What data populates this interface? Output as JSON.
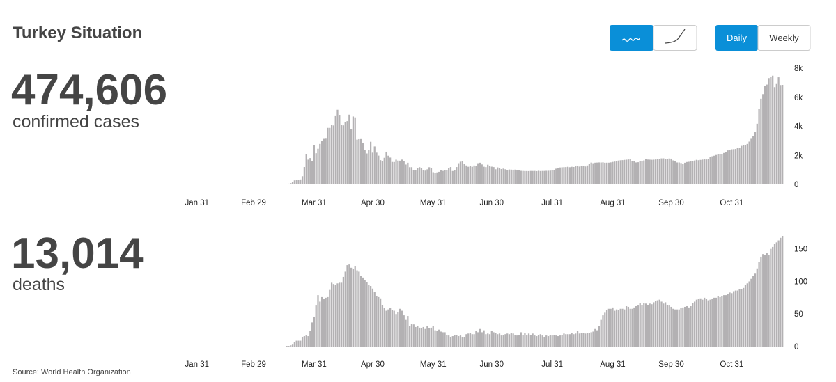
{
  "title": "Turkey Situation",
  "controls": {
    "modes": [
      "Daily",
      "Weekly"
    ]
  },
  "source": "Source: World Health Organization",
  "chart_data": [
    {
      "type": "bar",
      "total": "474,606",
      "total_label": "confirmed cases",
      "color": "#b3b1b3",
      "xlim": [
        "Jan 25",
        "Nov 27"
      ],
      "xticks": [
        "Jan 31",
        "Feb 29",
        "Mar 31",
        "Apr 30",
        "May 31",
        "Jun 30",
        "Jul 31",
        "Aug 31",
        "Sep 30",
        "Oct 31"
      ],
      "ylim": [
        0,
        8000
      ],
      "yticks": [
        0,
        {
          "value": 2000,
          "label": "2k"
        },
        {
          "value": 4000,
          "label": "4k"
        },
        {
          "value": 6000,
          "label": "6k"
        },
        {
          "value": 8000,
          "label": "8k"
        }
      ],
      "x": [
        "Mar 11",
        "Mar 12",
        "Mar 13",
        "Mar 14",
        "Mar 15",
        "Mar 16",
        "Mar 17",
        "Mar 18",
        "Mar 19",
        "Mar 20",
        "Mar 21",
        "Mar 22",
        "Mar 23",
        "Mar 24",
        "Mar 25",
        "Mar 26",
        "Mar 27",
        "Mar 28",
        "Mar 29",
        "Mar 30",
        "Mar 31",
        "Apr 1",
        "Apr 2",
        "Apr 3",
        "Apr 4",
        "Apr 5",
        "Apr 6",
        "Apr 7",
        "Apr 8",
        "Apr 9",
        "Apr 10",
        "Apr 11",
        "Apr 12",
        "Apr 13",
        "Apr 14",
        "Apr 15",
        "Apr 16",
        "Apr 17",
        "Apr 18",
        "Apr 19",
        "Apr 20",
        "Apr 21",
        "Apr 22",
        "Apr 23",
        "Apr 24",
        "Apr 25",
        "Apr 26",
        "Apr 27",
        "Apr 28",
        "Apr 29",
        "Apr 30",
        "May 1",
        "May 2",
        "May 3",
        "May 4",
        "May 5",
        "May 6",
        "May 7",
        "May 8",
        "May 9",
        "May 10",
        "May 11",
        "May 12",
        "May 13",
        "May 14",
        "May 15",
        "May 16",
        "May 17",
        "May 18",
        "May 19",
        "May 20",
        "May 21",
        "May 22",
        "May 23",
        "May 24",
        "May 25",
        "May 26",
        "May 27",
        "May 28",
        "May 29",
        "May 30",
        "May 31",
        "Jun 1",
        "Jun 2",
        "Jun 3",
        "Jun 4",
        "Jun 5",
        "Jun 6",
        "Jun 7",
        "Jun 8",
        "Jun 9",
        "Jun 10",
        "Jun 11",
        "Jun 12",
        "Jun 13",
        "Jun 14",
        "Jun 15",
        "Jun 16",
        "Jun 17",
        "Jun 18",
        "Jun 19",
        "Jun 20",
        "Jun 21",
        "Jun 22",
        "Jun 23",
        "Jun 24",
        "Jun 25",
        "Jun 26",
        "Jun 27",
        "Jun 28",
        "Jun 29",
        "Jun 30",
        "Jul 1",
        "Jul 2",
        "Jul 3",
        "Jul 4",
        "Jul 5",
        "Jul 6",
        "Jul 7",
        "Jul 8",
        "Jul 9",
        "Jul 10",
        "Jul 11",
        "Jul 12",
        "Jul 13",
        "Jul 14",
        "Jul 15",
        "Jul 16",
        "Jul 17",
        "Jul 18",
        "Jul 19",
        "Jul 20",
        "Jul 21",
        "Jul 22",
        "Jul 23",
        "Jul 24",
        "Jul 25",
        "Jul 26",
        "Jul 27",
        "Jul 28",
        "Jul 29",
        "Jul 30",
        "Jul 31",
        "Aug 1",
        "Aug 2",
        "Aug 3",
        "Aug 4",
        "Aug 5",
        "Aug 6",
        "Aug 7",
        "Aug 8",
        "Aug 9",
        "Aug 10",
        "Aug 11",
        "Aug 12",
        "Aug 13",
        "Aug 14",
        "Aug 15",
        "Aug 16",
        "Aug 17",
        "Aug 18",
        "Aug 19",
        "Aug 20",
        "Aug 21",
        "Aug 22",
        "Aug 23",
        "Aug 24",
        "Aug 25",
        "Aug 26",
        "Aug 27",
        "Aug 28",
        "Aug 29",
        "Aug 30",
        "Aug 31",
        "Sep 1",
        "Sep 2",
        "Sep 3",
        "Sep 4",
        "Sep 5",
        "Sep 6",
        "Sep 7",
        "Sep 8",
        "Sep 9",
        "Sep 10",
        "Sep 11",
        "Sep 12",
        "Sep 13",
        "Sep 14",
        "Sep 15",
        "Sep 16",
        "Sep 17",
        "Sep 18",
        "Sep 19",
        "Sep 20",
        "Sep 21",
        "Sep 22",
        "Sep 23",
        "Sep 24",
        "Sep 25",
        "Sep 26",
        "Sep 27",
        "Sep 28",
        "Sep 29",
        "Sep 30",
        "Oct 1",
        "Oct 2",
        "Oct 3",
        "Oct 4",
        "Oct 5",
        "Oct 6",
        "Oct 7",
        "Oct 8",
        "Oct 9",
        "Oct 10",
        "Oct 11",
        "Oct 12",
        "Oct 13",
        "Oct 14",
        "Oct 15",
        "Oct 16",
        "Oct 17",
        "Oct 18",
        "Oct 19",
        "Oct 20",
        "Oct 21",
        "Oct 22",
        "Oct 23",
        "Oct 24",
        "Oct 25",
        "Oct 26",
        "Oct 27",
        "Oct 28",
        "Oct 29",
        "Oct 30",
        "Oct 31",
        "Nov 1",
        "Nov 2",
        "Nov 3",
        "Nov 4",
        "Nov 5",
        "Nov 6",
        "Nov 7",
        "Nov 8",
        "Nov 9",
        "Nov 10",
        "Nov 11",
        "Nov 12",
        "Nov 13",
        "Nov 14",
        "Nov 15",
        "Nov 16",
        "Nov 17",
        "Nov 18",
        "Nov 19",
        "Nov 20",
        "Nov 21",
        "Nov 22",
        "Nov 23",
        "Nov 24",
        "Nov 25",
        "Nov 26"
      ],
      "values": [
        0,
        1,
        1,
        3,
        1,
        11,
        29,
        51,
        93,
        168,
        277,
        289,
        293,
        343,
        561,
        1196,
        2069,
        1704,
        1815,
        1610,
        2704,
        2148,
        2456,
        2786,
        3013,
        3135,
        3148,
        3892,
        3892,
        4117,
        4056,
        4747,
        5138,
        4789,
        4093,
        4062,
        4281,
        4353,
        4801,
        3783,
        4674,
        4611,
        3083,
        3116,
        3122,
        2861,
        2357,
        2131,
        2392,
        2936,
        2188,
        2615,
        2188,
        1983,
        1670,
        1614,
        1832,
        2253,
        1977,
        1848,
        1546,
        1542,
        1704,
        1641,
        1635,
        1708,
        1610,
        1368,
        1492,
        1184,
        1186,
        972,
        961,
        1141,
        1186,
        1141,
        987,
        948,
        1034,
        1182,
        1141,
        839,
        786,
        827,
        867,
        989,
        930,
        988,
        987,
        1141,
        1195,
        922,
        987,
        1195,
        1459,
        1562,
        1592,
        1429,
        1304,
        1214,
        1248,
        1212,
        1301,
        1293,
        1458,
        1492,
        1374,
        1214,
        1191,
        1356,
        1293,
        1219,
        1192,
        1041,
        1172,
        1148,
        1053,
        1086,
        1041,
        1001,
        1024,
        1016,
        1008,
        1016,
        972,
        999,
        933,
        926,
        919,
        918,
        915,
        926,
        924,
        927,
        913,
        937,
        919,
        925,
        926,
        935,
        939,
        947,
        967,
        993,
        1083,
        1104,
        1166,
        1178,
        1186,
        1192,
        1211,
        1183,
        1212,
        1198,
        1243,
        1263,
        1226,
        1256,
        1263,
        1234,
        1303,
        1412,
        1502,
        1458,
        1494,
        1502,
        1512,
        1509,
        1517,
        1491,
        1494,
        1495,
        1517,
        1549,
        1572,
        1596,
        1643,
        1661,
        1671,
        1690,
        1703,
        1716,
        1727,
        1617,
        1597,
        1512,
        1527,
        1582,
        1612,
        1650,
        1742,
        1710,
        1704,
        1696,
        1703,
        1717,
        1739,
        1767,
        1792,
        1795,
        1751,
        1741,
        1785,
        1775,
        1653,
        1602,
        1510,
        1509,
        1471,
        1417,
        1491,
        1542,
        1559,
        1583,
        1614,
        1646,
        1692,
        1665,
        1688,
        1709,
        1722,
        1717,
        1757,
        1886,
        1936,
        1975,
        2026,
        2102,
        2089,
        2102,
        2165,
        2204,
        2343,
        2364,
        2418,
        2426,
        2440,
        2515,
        2532,
        2655,
        2685,
        2688,
        2785,
        2947,
        3140,
        3346,
        3593,
        4175,
        5215,
        5900,
        6214,
        6756,
        6871,
        7317,
        7381,
        7485,
        6694,
        6911,
        7374,
        6838,
        6850
      ]
    },
    {
      "type": "bar",
      "total": "13,014",
      "total_label": "deaths",
      "color": "#b3b1b3",
      "xlim": [
        "Jan 25",
        "Nov 27"
      ],
      "xticks": [
        "Jan 31",
        "Feb 29",
        "Mar 31",
        "Apr 30",
        "May 31",
        "Jun 30",
        "Jul 31",
        "Aug 31",
        "Sep 30",
        "Oct 31"
      ],
      "ylim": [
        0,
        170
      ],
      "yticks": [
        0,
        50,
        100,
        150
      ],
      "x": [
        "Mar 11",
        "Mar 12",
        "Mar 13",
        "Mar 14",
        "Mar 15",
        "Mar 16",
        "Mar 17",
        "Mar 18",
        "Mar 19",
        "Mar 20",
        "Mar 21",
        "Mar 22",
        "Mar 23",
        "Mar 24",
        "Mar 25",
        "Mar 26",
        "Mar 27",
        "Mar 28",
        "Mar 29",
        "Mar 30",
        "Mar 31",
        "Apr 1",
        "Apr 2",
        "Apr 3",
        "Apr 4",
        "Apr 5",
        "Apr 6",
        "Apr 7",
        "Apr 8",
        "Apr 9",
        "Apr 10",
        "Apr 11",
        "Apr 12",
        "Apr 13",
        "Apr 14",
        "Apr 15",
        "Apr 16",
        "Apr 17",
        "Apr 18",
        "Apr 19",
        "Apr 20",
        "Apr 21",
        "Apr 22",
        "Apr 23",
        "Apr 24",
        "Apr 25",
        "Apr 26",
        "Apr 27",
        "Apr 28",
        "Apr 29",
        "Apr 30",
        "May 1",
        "May 2",
        "May 3",
        "May 4",
        "May 5",
        "May 6",
        "May 7",
        "May 8",
        "May 9",
        "May 10",
        "May 11",
        "May 12",
        "May 13",
        "May 14",
        "May 15",
        "May 16",
        "May 17",
        "May 18",
        "May 19",
        "May 20",
        "May 21",
        "May 22",
        "May 23",
        "May 24",
        "May 25",
        "May 26",
        "May 27",
        "May 28",
        "May 29",
        "May 30",
        "May 31",
        "Jun 1",
        "Jun 2",
        "Jun 3",
        "Jun 4",
        "Jun 5",
        "Jun 6",
        "Jun 7",
        "Jun 8",
        "Jun 9",
        "Jun 10",
        "Jun 11",
        "Jun 12",
        "Jun 13",
        "Jun 14",
        "Jun 15",
        "Jun 16",
        "Jun 17",
        "Jun 18",
        "Jun 19",
        "Jun 20",
        "Jun 21",
        "Jun 22",
        "Jun 23",
        "Jun 24",
        "Jun 25",
        "Jun 26",
        "Jun 27",
        "Jun 28",
        "Jun 29",
        "Jun 30",
        "Jul 1",
        "Jul 2",
        "Jul 3",
        "Jul 4",
        "Jul 5",
        "Jul 6",
        "Jul 7",
        "Jul 8",
        "Jul 9",
        "Jul 10",
        "Jul 11",
        "Jul 12",
        "Jul 13",
        "Jul 14",
        "Jul 15",
        "Jul 16",
        "Jul 17",
        "Jul 18",
        "Jul 19",
        "Jul 20",
        "Jul 21",
        "Jul 22",
        "Jul 23",
        "Jul 24",
        "Jul 25",
        "Jul 26",
        "Jul 27",
        "Jul 28",
        "Jul 29",
        "Jul 30",
        "Jul 31",
        "Aug 1",
        "Aug 2",
        "Aug 3",
        "Aug 4",
        "Aug 5",
        "Aug 6",
        "Aug 7",
        "Aug 8",
        "Aug 9",
        "Aug 10",
        "Aug 11",
        "Aug 12",
        "Aug 13",
        "Aug 14",
        "Aug 15",
        "Aug 16",
        "Aug 17",
        "Aug 18",
        "Aug 19",
        "Aug 20",
        "Aug 21",
        "Aug 22",
        "Aug 23",
        "Aug 24",
        "Aug 25",
        "Aug 26",
        "Aug 27",
        "Aug 28",
        "Aug 29",
        "Aug 30",
        "Aug 31",
        "Sep 1",
        "Sep 2",
        "Sep 3",
        "Sep 4",
        "Sep 5",
        "Sep 6",
        "Sep 7",
        "Sep 8",
        "Sep 9",
        "Sep 10",
        "Sep 11",
        "Sep 12",
        "Sep 13",
        "Sep 14",
        "Sep 15",
        "Sep 16",
        "Sep 17",
        "Sep 18",
        "Sep 19",
        "Sep 20",
        "Sep 21",
        "Sep 22",
        "Sep 23",
        "Sep 24",
        "Sep 25",
        "Sep 26",
        "Sep 27",
        "Sep 28",
        "Sep 29",
        "Sep 30",
        "Oct 1",
        "Oct 2",
        "Oct 3",
        "Oct 4",
        "Oct 5",
        "Oct 6",
        "Oct 7",
        "Oct 8",
        "Oct 9",
        "Oct 10",
        "Oct 11",
        "Oct 12",
        "Oct 13",
        "Oct 14",
        "Oct 15",
        "Oct 16",
        "Oct 17",
        "Oct 18",
        "Oct 19",
        "Oct 20",
        "Oct 21",
        "Oct 22",
        "Oct 23",
        "Oct 24",
        "Oct 25",
        "Oct 26",
        "Oct 27",
        "Oct 28",
        "Oct 29",
        "Oct 30",
        "Oct 31",
        "Nov 1",
        "Nov 2",
        "Nov 3",
        "Nov 4",
        "Nov 5",
        "Nov 6",
        "Nov 7",
        "Nov 8",
        "Nov 9",
        "Nov 10",
        "Nov 11",
        "Nov 12",
        "Nov 13",
        "Nov 14",
        "Nov 15",
        "Nov 16",
        "Nov 17",
        "Nov 18",
        "Nov 19",
        "Nov 20",
        "Nov 21",
        "Nov 22",
        "Nov 23",
        "Nov 24",
        "Nov 25",
        "Nov 26"
      ],
      "values": [
        0,
        0,
        0,
        0,
        0,
        0,
        1,
        1,
        2,
        3,
        7,
        9,
        9,
        9,
        15,
        16,
        17,
        16,
        24,
        37,
        46,
        63,
        79,
        69,
        76,
        73,
        75,
        76,
        87,
        98,
        96,
        95,
        97,
        98,
        98,
        107,
        115,
        125,
        126,
        121,
        119,
        123,
        117,
        115,
        109,
        106,
        102,
        99,
        95,
        93,
        89,
        84,
        78,
        76,
        74,
        64,
        59,
        55,
        57,
        59,
        56,
        55,
        50,
        53,
        58,
        55,
        48,
        41,
        47,
        32,
        35,
        34,
        30,
        32,
        29,
        28,
        30,
        27,
        32,
        28,
        29,
        31,
        25,
        24,
        26,
        23,
        22,
        22,
        18,
        17,
        15,
        16,
        18,
        18,
        16,
        17,
        15,
        14,
        19,
        20,
        21,
        19,
        19,
        24,
        22,
        27,
        22,
        25,
        19,
        20,
        19,
        24,
        22,
        21,
        19,
        20,
        17,
        18,
        19,
        20,
        19,
        21,
        20,
        18,
        17,
        18,
        22,
        18,
        21,
        18,
        20,
        18,
        20,
        17,
        16,
        18,
        19,
        17,
        15,
        17,
        16,
        18,
        17,
        18,
        17,
        16,
        17,
        18,
        20,
        19,
        19,
        19,
        21,
        19,
        20,
        24,
        20,
        21,
        21,
        20,
        21,
        21,
        22,
        23,
        27,
        25,
        31,
        41,
        48,
        52,
        56,
        58,
        58,
        60,
        55,
        57,
        56,
        58,
        58,
        57,
        62,
        61,
        58,
        58,
        60,
        62,
        63,
        67,
        64,
        67,
        66,
        64,
        66,
        65,
        68,
        70,
        71,
        72,
        69,
        66,
        68,
        64,
        63,
        61,
        58,
        57,
        57,
        57,
        59,
        60,
        61,
        62,
        60,
        62,
        67,
        69,
        72,
        73,
        74,
        72,
        75,
        73,
        71,
        72,
        73,
        75,
        75,
        78,
        76,
        78,
        79,
        79,
        81,
        83,
        82,
        85,
        86,
        86,
        88,
        88,
        90,
        95,
        97,
        100,
        104,
        108,
        112,
        120,
        130,
        138,
        142,
        141,
        144,
        141,
        150,
        153,
        158,
        160,
        163,
        167,
        170
      ]
    }
  ]
}
